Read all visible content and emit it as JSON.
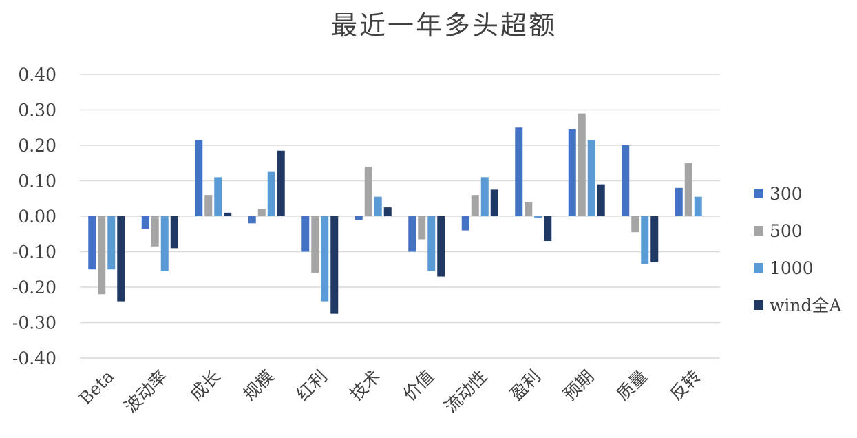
{
  "chart_data": {
    "type": "bar",
    "title": "最近一年多头超额",
    "xlabel": "",
    "ylabel": "",
    "ylim": [
      -0.4,
      0.4
    ],
    "yticks": [
      "0.40",
      "0.30",
      "0.20",
      "0.10",
      "0.00",
      "-0.10",
      "-0.20",
      "-0.30",
      "-0.40"
    ],
    "grid": true,
    "legend_position": "right",
    "categories": [
      "Beta",
      "波动率",
      "成长",
      "规模",
      "红利",
      "技术",
      "价值",
      "流动性",
      "盈利",
      "预期",
      "质量",
      "反转"
    ],
    "series": [
      {
        "name": "300",
        "color": "#4472C4",
        "values": [
          -0.15,
          -0.035,
          0.215,
          -0.02,
          -0.1,
          -0.01,
          -0.1,
          -0.04,
          0.25,
          0.245,
          0.2,
          0.08
        ]
      },
      {
        "name": "500",
        "color": "#A5A5A5",
        "values": [
          -0.22,
          -0.085,
          0.06,
          0.02,
          -0.16,
          0.14,
          -0.065,
          0.06,
          0.04,
          0.29,
          -0.045,
          0.15
        ]
      },
      {
        "name": "1000",
        "color": "#5B9BD5",
        "values": [
          -0.15,
          -0.155,
          0.11,
          0.125,
          -0.24,
          0.055,
          -0.155,
          0.11,
          -0.005,
          0.215,
          -0.135,
          0.055
        ]
      },
      {
        "name": "wind全A",
        "color": "#203864",
        "values": [
          -0.24,
          -0.09,
          0.01,
          0.185,
          -0.275,
          0.025,
          -0.17,
          0.075,
          -0.07,
          0.09,
          -0.13,
          0.0
        ]
      }
    ]
  }
}
